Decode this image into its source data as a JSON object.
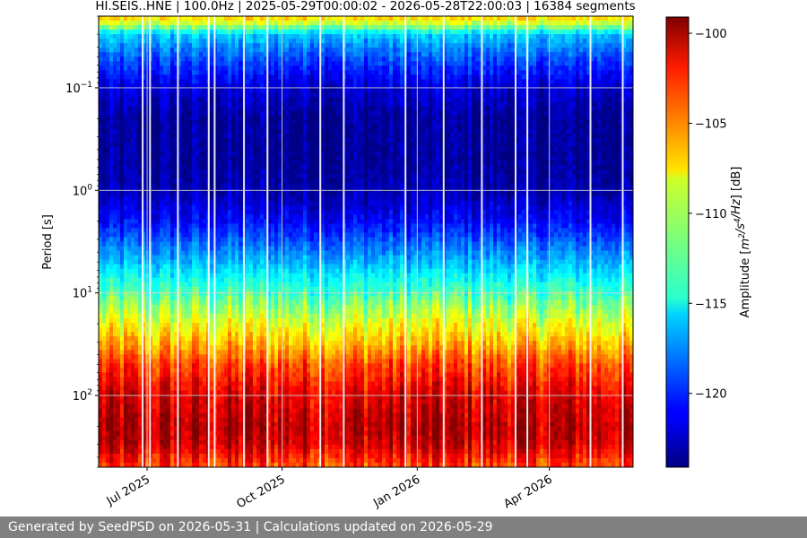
{
  "chart_data": {
    "type": "heatmap",
    "title": "HI.SEIS..HNE | 100.0Hz | 2025-05-29T00:00:02 - 2026-05-28T22:00:03 | 16384 segments",
    "xlabel": "",
    "ylabel": "Period [s]",
    "y_scale": "log",
    "y_inverted": true,
    "xlim": [
      "2025-05-29",
      "2026-05-28"
    ],
    "ylim_period_s": [
      0.02,
      500
    ],
    "x_ticks": [
      {
        "date": "2025-07-01",
        "label": "Jul 2025"
      },
      {
        "date": "2025-10-01",
        "label": "Oct 2025"
      },
      {
        "date": "2026-01-01",
        "label": "Jan 2026"
      },
      {
        "date": "2026-04-01",
        "label": "Apr 2026"
      }
    ],
    "y_ticks": [
      {
        "value": 0.1,
        "base": "10",
        "exp": "−1"
      },
      {
        "value": 1,
        "base": "10",
        "exp": "0"
      },
      {
        "value": 10,
        "base": "10",
        "exp": "1"
      },
      {
        "value": 100,
        "base": "10",
        "exp": "2"
      }
    ],
    "grid": true,
    "colormap": "jet",
    "colorbar": {
      "label_html": "Amplitude [m²/s⁴/Hz] [dB]",
      "label_prefix": "Amplitude [",
      "label_math": "m",
      "label_rest": "2/s4/Hz",
      "label_suffix": "] [dB]",
      "min": -124.1,
      "max": -99.1,
      "ticks": [
        {
          "value": -100,
          "label": "−100"
        },
        {
          "value": -105,
          "label": "−105"
        },
        {
          "value": -110,
          "label": "−110"
        },
        {
          "value": -115,
          "label": "−115"
        },
        {
          "value": -120,
          "label": "−120"
        }
      ]
    },
    "mean_profile": {
      "period_s": [
        0.02,
        0.025,
        0.03,
        0.05,
        0.1,
        0.2,
        0.5,
        1,
        2,
        5,
        10,
        20,
        30,
        50,
        100,
        200,
        300,
        500
      ],
      "amplitude_db": [
        -107,
        -111,
        -116,
        -119,
        -122,
        -123.5,
        -123.5,
        -123,
        -121,
        -116.5,
        -113,
        -109,
        -107,
        -104,
        -101.5,
        -100.5,
        -101,
        -104
      ]
    },
    "data_gaps": [
      "2025-06-28",
      "2025-07-03",
      "2025-07-22",
      "2025-08-12",
      "2025-08-16",
      "2025-09-05",
      "2025-09-21",
      "2025-10-27",
      "2025-11-12",
      "2025-12-24",
      "2026-01-19",
      "2026-02-14",
      "2026-03-09",
      "2026-03-17",
      "2026-04-29",
      "2026-05-21"
    ]
  },
  "footer": {
    "text": "Generated by SeedPSD on 2026-05-31 | Calculations updated on 2026-05-29"
  }
}
